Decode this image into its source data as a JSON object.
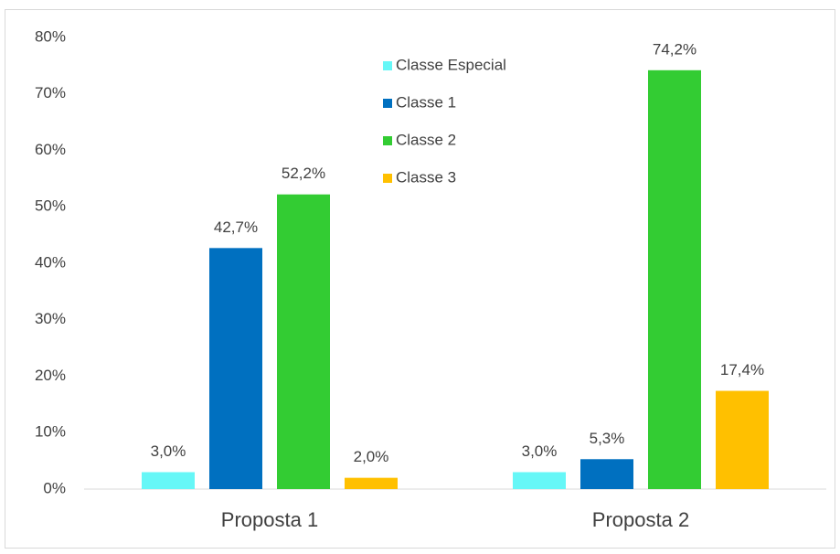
{
  "chart_data": {
    "type": "bar",
    "categories": [
      "Proposta 1",
      "Proposta 2"
    ],
    "series": [
      {
        "name": "Classe Especial",
        "color": "#66f7f7",
        "values": [
          3.0,
          3.0
        ],
        "value_labels": [
          "3,0%",
          "3,0%"
        ]
      },
      {
        "name": "Classe 1",
        "color": "#0070c0",
        "values": [
          42.7,
          5.3
        ],
        "value_labels": [
          "42,7%",
          "5,3%"
        ]
      },
      {
        "name": "Classe 2",
        "color": "#33cc33",
        "values": [
          52.2,
          74.2
        ],
        "value_labels": [
          "52,2%",
          "74,2%"
        ]
      },
      {
        "name": "Classe 3",
        "color": "#ffc000",
        "values": [
          2.0,
          17.4
        ],
        "value_labels": [
          "2,0%",
          "17,4%"
        ]
      }
    ],
    "ylim": [
      0,
      80
    ],
    "yticks": [
      {
        "value": 0,
        "label": "0%"
      },
      {
        "value": 10,
        "label": "10%"
      },
      {
        "value": 20,
        "label": "20%"
      },
      {
        "value": 30,
        "label": "30%"
      },
      {
        "value": 40,
        "label": "40%"
      },
      {
        "value": 50,
        "label": "50%"
      },
      {
        "value": 60,
        "label": "60%"
      },
      {
        "value": 70,
        "label": "70%"
      },
      {
        "value": 80,
        "label": "80%"
      }
    ],
    "grid": false,
    "legend": "top"
  }
}
